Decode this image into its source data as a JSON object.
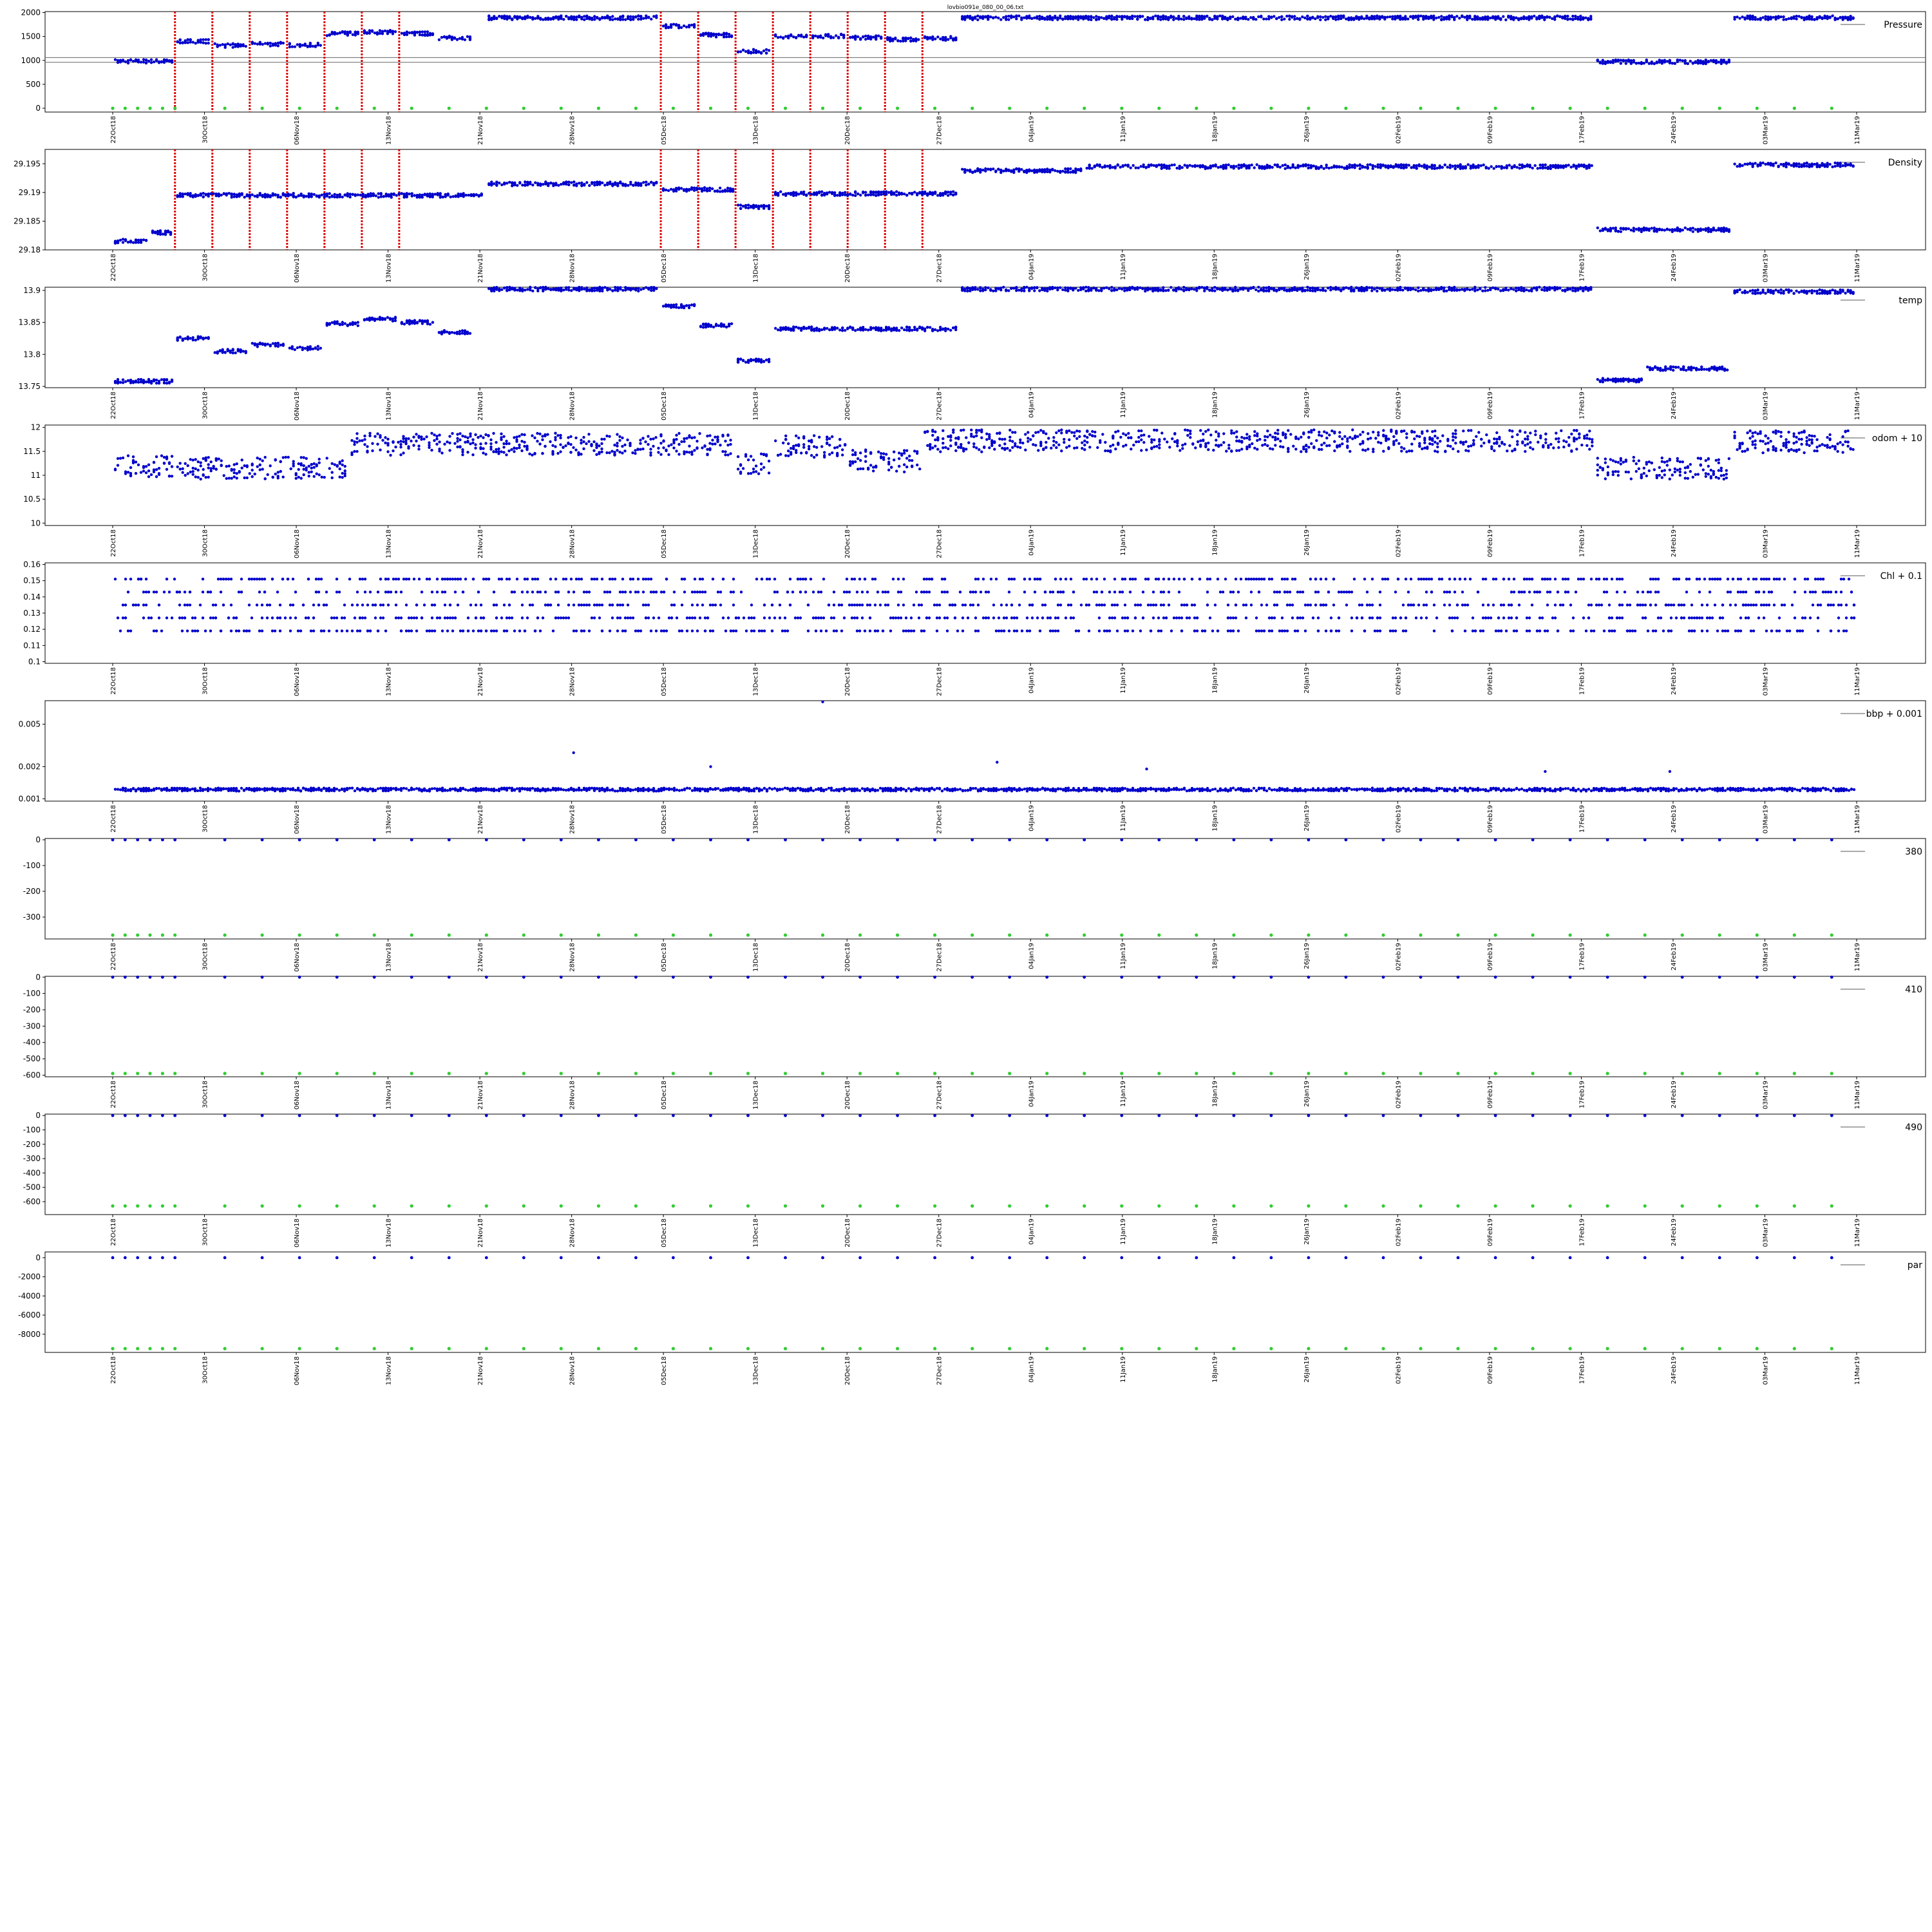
{
  "figure_title": "lovbio091e_080_00_06.txt",
  "date_ticks": [
    "22Oct18",
    "30Oct18",
    "06Nov18",
    "13Nov18",
    "21Nov18",
    "28Nov18",
    "05Dec18",
    "13Dec18",
    "20Dec18",
    "27Dec18",
    "04Jan19",
    "11Jan19",
    "18Jan19",
    "26Jan19",
    "02Feb19",
    "09Feb19",
    "17Feb19",
    "24Feb19",
    "03Mar19",
    "11Mar19"
  ],
  "x_range": [
    "2018-10-22",
    "2019-03-11"
  ],
  "colors": {
    "data": "#0000cc",
    "marker": "#33cc33",
    "vline": "#dd0000",
    "axis": "#000000"
  },
  "chart_data": [
    {
      "type": "scatter",
      "legend": "Pressure",
      "yticks": [
        0,
        500,
        1000,
        1500,
        2000
      ],
      "ylim": [
        -80,
        2020
      ],
      "hlines": [
        960,
        1060
      ],
      "vlines": [
        "2018-10-27",
        "2018-10-30",
        "2018-11-02",
        "2018-11-05",
        "2018-11-08",
        "2018-11-11",
        "2018-11-14",
        "2018-12-05",
        "2018-12-08",
        "2018-12-11",
        "2018-12-14",
        "2018-12-17",
        "2018-12-20",
        "2018-12-23",
        "2018-12-26"
      ],
      "markers": {
        "y": 0,
        "dates": [
          "2018-10-22",
          "2018-10-23",
          "2018-10-24",
          "2018-10-25",
          "2018-10-26",
          "2018-10-27",
          "2018-10-31",
          "2018-11-03",
          "2018-11-06",
          "2018-11-09",
          "2018-11-12",
          "2018-11-15",
          "2018-11-18",
          "2018-11-21",
          "2018-11-24",
          "2018-11-27",
          "2018-11-30",
          "2018-12-03",
          "2018-12-06",
          "2018-12-09",
          "2018-12-12",
          "2018-12-15",
          "2018-12-18",
          "2018-12-21",
          "2018-12-24",
          "2018-12-27",
          "2018-12-30",
          "2019-01-02",
          "2019-01-05",
          "2019-01-08",
          "2019-01-11",
          "2019-01-14",
          "2019-01-17",
          "2019-01-20",
          "2019-01-23",
          "2019-01-26",
          "2019-01-29",
          "2019-02-01",
          "2019-02-04",
          "2019-02-07",
          "2019-02-10",
          "2019-02-13",
          "2019-02-16",
          "2019-02-19",
          "2019-02-22",
          "2019-02-25",
          "2019-02-28",
          "2019-03-03",
          "2019-03-06",
          "2019-03-09"
        ]
      },
      "segments": [
        [
          "2018-10-22",
          "2018-10-27",
          980
        ],
        [
          "2018-10-27",
          "2018-10-30",
          1400
        ],
        [
          "2018-10-30",
          "2018-11-02",
          1310
        ],
        [
          "2018-11-02",
          "2018-11-05",
          1340
        ],
        [
          "2018-11-05",
          "2018-11-08",
          1320
        ],
        [
          "2018-11-08",
          "2018-11-11",
          1560
        ],
        [
          "2018-11-11",
          "2018-11-14",
          1590
        ],
        [
          "2018-11-14",
          "2018-11-17",
          1560
        ],
        [
          "2018-11-17",
          "2018-11-20",
          1470
        ],
        [
          "2018-11-21",
          "2018-12-05",
          1890
        ],
        [
          "2018-12-05",
          "2018-12-08",
          1720
        ],
        [
          "2018-12-08",
          "2018-12-11",
          1530
        ],
        [
          "2018-12-11",
          "2018-12-14",
          1190
        ],
        [
          "2018-12-14",
          "2018-12-17",
          1500
        ],
        [
          "2018-12-17",
          "2018-12-20",
          1510
        ],
        [
          "2018-12-20",
          "2018-12-23",
          1480
        ],
        [
          "2018-12-23",
          "2018-12-26",
          1440
        ],
        [
          "2018-12-26",
          "2018-12-29",
          1460
        ],
        [
          "2018-12-29",
          "2019-02-18",
          1890
        ],
        [
          "2019-02-18",
          "2019-02-29",
          970
        ],
        [
          "2019-03-01",
          "2019-03-11",
          1890
        ]
      ]
    },
    {
      "type": "scatter",
      "legend": "Density",
      "yticks": [
        29.18,
        29.185,
        29.19,
        29.195
      ],
      "ylim": [
        29.18,
        29.1975
      ],
      "vlines": [
        "2018-10-27",
        "2018-10-30",
        "2018-11-02",
        "2018-11-05",
        "2018-11-08",
        "2018-11-11",
        "2018-11-14",
        "2018-12-05",
        "2018-12-08",
        "2018-12-11",
        "2018-12-14",
        "2018-12-17",
        "2018-12-20",
        "2018-12-23",
        "2018-12-26"
      ],
      "segments": [
        [
          "2018-10-22",
          "2018-10-25",
          29.1815
        ],
        [
          "2018-10-25",
          "2018-10-27",
          29.183
        ],
        [
          "2018-10-27",
          "2018-11-21",
          29.1895
        ],
        [
          "2018-11-21",
          "2018-12-05",
          29.1915
        ],
        [
          "2018-12-05",
          "2018-12-11",
          29.1905
        ],
        [
          "2018-12-11",
          "2018-12-14",
          29.1875
        ],
        [
          "2018-12-14",
          "2018-12-29",
          29.1898
        ],
        [
          "2018-12-29",
          "2019-01-08",
          29.1938
        ],
        [
          "2019-01-08",
          "2019-02-18",
          29.1945
        ],
        [
          "2019-02-18",
          "2019-03-01",
          29.1835
        ],
        [
          "2019-03-01",
          "2019-03-11",
          29.1948
        ]
      ]
    },
    {
      "type": "scatter",
      "legend": "temp",
      "yticks": [
        13.75,
        13.8,
        13.85,
        13.9
      ],
      "ylim": [
        13.748,
        13.905
      ],
      "segments": [
        [
          "2018-10-22",
          "2018-10-27",
          13.758
        ],
        [
          "2018-10-27",
          "2018-10-30",
          13.825
        ],
        [
          "2018-10-30",
          "2018-11-02",
          13.805
        ],
        [
          "2018-11-02",
          "2018-11-05",
          13.815
        ],
        [
          "2018-11-05",
          "2018-11-08",
          13.81
        ],
        [
          "2018-11-08",
          "2018-11-11",
          13.848
        ],
        [
          "2018-11-11",
          "2018-11-14",
          13.855
        ],
        [
          "2018-11-14",
          "2018-11-17",
          13.85
        ],
        [
          "2018-11-17",
          "2018-11-20",
          13.835
        ],
        [
          "2018-11-21",
          "2018-12-05",
          13.902
        ],
        [
          "2018-12-05",
          "2018-12-08",
          13.875
        ],
        [
          "2018-12-08",
          "2018-12-11",
          13.845
        ],
        [
          "2018-12-11",
          "2018-12-14",
          13.79
        ],
        [
          "2018-12-14",
          "2018-12-29",
          13.84
        ],
        [
          "2018-12-29",
          "2019-02-18",
          13.902
        ],
        [
          "2019-02-18",
          "2019-02-22",
          13.76
        ],
        [
          "2019-02-22",
          "2019-03-01",
          13.778
        ],
        [
          "2019-03-01",
          "2019-03-11",
          13.898
        ]
      ]
    },
    {
      "type": "scatter",
      "legend": "odom + 10",
      "yticks": [
        10.0,
        10.5,
        11.0,
        11.5,
        12.0
      ],
      "ylim": [
        9.95,
        12.05
      ],
      "segments": [
        [
          "2018-10-22",
          "2018-10-27",
          11.2
        ],
        [
          "2018-10-27",
          "2018-11-10",
          11.15
        ],
        [
          "2018-11-10",
          "2018-12-11",
          11.65
        ],
        [
          "2018-12-11",
          "2018-12-14",
          11.25
        ],
        [
          "2018-12-14",
          "2018-12-20",
          11.6
        ],
        [
          "2018-12-20",
          "2018-12-26",
          11.3
        ],
        [
          "2018-12-26",
          "2019-02-18",
          11.72
        ],
        [
          "2019-02-18",
          "2019-03-01",
          11.15
        ],
        [
          "2019-03-01",
          "2019-03-11",
          11.7
        ]
      ]
    },
    {
      "type": "scatter",
      "legend": "Chl + 0.1",
      "yticks": [
        0.1,
        0.11,
        0.12,
        0.13,
        0.14,
        0.15,
        0.16
      ],
      "ylim": [
        0.099,
        0.161
      ],
      "segments": [
        [
          "2018-10-22",
          "2019-03-11",
          0.135
        ]
      ]
    },
    {
      "type": "scatter",
      "legend": "bbp + 0.001",
      "yticks": [
        0.001,
        0.002,
        0.005
      ],
      "ylim": [
        0.00095,
        0.0083
      ],
      "log": true,
      "segments": [
        [
          "2018-10-22",
          "2019-03-11",
          0.00122
        ]
      ]
    },
    {
      "type": "scatter",
      "legend": "380",
      "yticks": [
        0,
        -100,
        -200,
        -300
      ],
      "ylim": [
        -385,
        5
      ],
      "markers": {
        "y": -370,
        "dates": [
          "2018-10-22",
          "2018-10-23",
          "2018-10-24",
          "2018-10-25",
          "2018-10-26",
          "2018-10-27",
          "2018-10-31",
          "2018-11-03",
          "2018-11-06",
          "2018-11-09",
          "2018-11-12",
          "2018-11-15",
          "2018-11-18",
          "2018-11-21",
          "2018-11-24",
          "2018-11-27",
          "2018-11-30",
          "2018-12-03",
          "2018-12-06",
          "2018-12-09",
          "2018-12-12",
          "2018-12-15",
          "2018-12-18",
          "2018-12-21",
          "2018-12-24",
          "2018-12-27",
          "2018-12-30",
          "2019-01-02",
          "2019-01-05",
          "2019-01-08",
          "2019-01-11",
          "2019-01-14",
          "2019-01-17",
          "2019-01-20",
          "2019-01-23",
          "2019-01-26",
          "2019-01-29",
          "2019-02-01",
          "2019-02-04",
          "2019-02-07",
          "2019-02-10",
          "2019-02-13",
          "2019-02-16",
          "2019-02-19",
          "2019-02-22",
          "2019-02-25",
          "2019-02-28",
          "2019-03-03",
          "2019-03-06",
          "2019-03-09"
        ]
      },
      "top_y": 0
    },
    {
      "type": "scatter",
      "legend": "410",
      "yticks": [
        0,
        -100,
        -200,
        -300,
        -400,
        -500,
        -600
      ],
      "ylim": [
        -610,
        5
      ],
      "markers": {
        "y": -590,
        "dates": [
          "2018-10-22",
          "2018-10-23",
          "2018-10-24",
          "2018-10-25",
          "2018-10-26",
          "2018-10-27",
          "2018-10-31",
          "2018-11-03",
          "2018-11-06",
          "2018-11-09",
          "2018-11-12",
          "2018-11-15",
          "2018-11-18",
          "2018-11-21",
          "2018-11-24",
          "2018-11-27",
          "2018-11-30",
          "2018-12-03",
          "2018-12-06",
          "2018-12-09",
          "2018-12-12",
          "2018-12-15",
          "2018-12-18",
          "2018-12-21",
          "2018-12-24",
          "2018-12-27",
          "2018-12-30",
          "2019-01-02",
          "2019-01-05",
          "2019-01-08",
          "2019-01-11",
          "2019-01-14",
          "2019-01-17",
          "2019-01-20",
          "2019-01-23",
          "2019-01-26",
          "2019-01-29",
          "2019-02-01",
          "2019-02-04",
          "2019-02-07",
          "2019-02-10",
          "2019-02-13",
          "2019-02-16",
          "2019-02-19",
          "2019-02-22",
          "2019-02-25",
          "2019-02-28",
          "2019-03-03",
          "2019-03-06",
          "2019-03-09"
        ]
      },
      "top_y": 0
    },
    {
      "type": "scatter",
      "legend": "490",
      "yticks": [
        0,
        -100,
        -200,
        -300,
        -400,
        -500,
        -600
      ],
      "ylim": [
        -690,
        10
      ],
      "markers": {
        "y": -630,
        "dates": [
          "2018-10-22",
          "2018-10-23",
          "2018-10-24",
          "2018-10-25",
          "2018-10-26",
          "2018-10-27",
          "2018-10-31",
          "2018-11-03",
          "2018-11-06",
          "2018-11-09",
          "2018-11-12",
          "2018-11-15",
          "2018-11-18",
          "2018-11-21",
          "2018-11-24",
          "2018-11-27",
          "2018-11-30",
          "2018-12-03",
          "2018-12-06",
          "2018-12-09",
          "2018-12-12",
          "2018-12-15",
          "2018-12-18",
          "2018-12-21",
          "2018-12-24",
          "2018-12-27",
          "2018-12-30",
          "2019-01-02",
          "2019-01-05",
          "2019-01-08",
          "2019-01-11",
          "2019-01-14",
          "2019-01-17",
          "2019-01-20",
          "2019-01-23",
          "2019-01-26",
          "2019-01-29",
          "2019-02-01",
          "2019-02-04",
          "2019-02-07",
          "2019-02-10",
          "2019-02-13",
          "2019-02-16",
          "2019-02-19",
          "2019-02-22",
          "2019-02-25",
          "2019-02-28",
          "2019-03-03",
          "2019-03-06",
          "2019-03-09"
        ]
      },
      "top_y": 0
    },
    {
      "type": "scatter",
      "legend": "par",
      "yticks": [
        0,
        -2000,
        -4000,
        -6000,
        -8000
      ],
      "ylim": [
        -9900,
        600
      ],
      "markers": {
        "y": -9500,
        "dates": [
          "2018-10-22",
          "2018-10-23",
          "2018-10-24",
          "2018-10-25",
          "2018-10-26",
          "2018-10-27",
          "2018-10-31",
          "2018-11-03",
          "2018-11-06",
          "2018-11-09",
          "2018-11-12",
          "2018-11-15",
          "2018-11-18",
          "2018-11-21",
          "2018-11-24",
          "2018-11-27",
          "2018-11-30",
          "2018-12-03",
          "2018-12-06",
          "2018-12-09",
          "2018-12-12",
          "2018-12-15",
          "2018-12-18",
          "2018-12-21",
          "2018-12-24",
          "2018-12-27",
          "2018-12-30",
          "2019-01-02",
          "2019-01-05",
          "2019-01-08",
          "2019-01-11",
          "2019-01-14",
          "2019-01-17",
          "2019-01-20",
          "2019-01-23",
          "2019-01-26",
          "2019-01-29",
          "2019-02-01",
          "2019-02-04",
          "2019-02-07",
          "2019-02-10",
          "2019-02-13",
          "2019-02-16",
          "2019-02-19",
          "2019-02-22",
          "2019-02-25",
          "2019-02-28",
          "2019-03-03",
          "2019-03-06",
          "2019-03-09"
        ]
      },
      "top_y": 0
    }
  ]
}
